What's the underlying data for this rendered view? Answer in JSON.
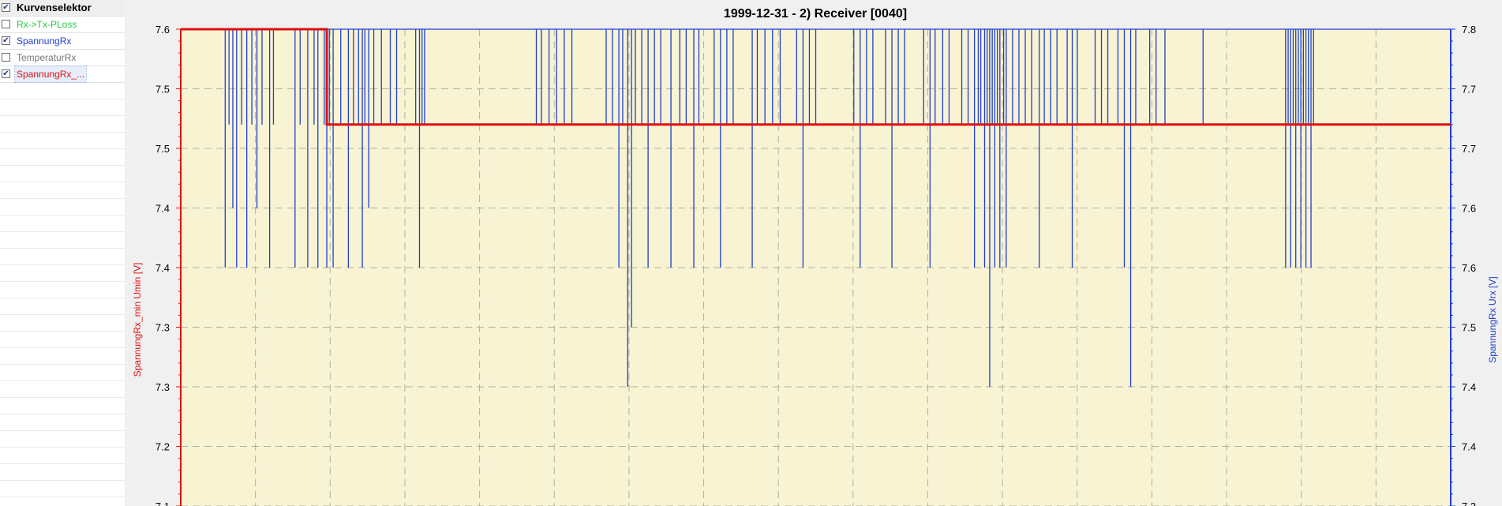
{
  "sidebar": {
    "header": {
      "label": "Kurvenselektor",
      "checked": true
    },
    "items": [
      {
        "label": "Rx->Tx-PLoss",
        "checked": false,
        "color": "#22cc44"
      },
      {
        "label": "SpannungRx",
        "checked": true,
        "color": "#1f3fcf"
      },
      {
        "label": "TemperaturRx",
        "checked": false,
        "color": "#777777"
      },
      {
        "label": "SpannungRx_...",
        "checked": true,
        "color": "#dd1111",
        "selected": true
      }
    ]
  },
  "chart_data": {
    "type": "line",
    "title": "1999-12-31 - 2) Receiver [0040]",
    "plot_background": "#f7f3d3",
    "grid": true,
    "left_axis": {
      "label": "SpannungRx_min  Umin  [V]",
      "color": "#dd1111",
      "ticks": [
        "7.6",
        "7.5",
        "7.5",
        "7.4",
        "7.4",
        "7.3",
        "7.3",
        "7.2",
        "7.1"
      ],
      "range": [
        7.1,
        7.6
      ]
    },
    "right_axis": {
      "label": "SpannungRx  Urx  [V]",
      "color": "#1f3fcf",
      "ticks": [
        "7.8",
        "7.7",
        "7.7",
        "7.6",
        "7.6",
        "7.5",
        "7.4",
        "7.4",
        "7.3"
      ],
      "range": [
        7.3,
        7.8
      ]
    },
    "series": [
      {
        "name": "SpannungRx_...",
        "axis": "left",
        "color": "#dd1111",
        "type": "step",
        "x": [
          0,
          11.5,
          11.5,
          100
        ],
        "y": [
          7.6,
          7.6,
          7.52,
          7.52
        ]
      },
      {
        "name": "SpannungRx",
        "axis": "right",
        "color": "#1f3fcf",
        "type": "drops",
        "baseline": 7.8,
        "drops": [
          [
            3.5,
            7.6
          ],
          [
            3.8,
            7.72
          ],
          [
            4.1,
            7.65
          ],
          [
            4.4,
            7.6
          ],
          [
            4.8,
            7.72
          ],
          [
            5.2,
            7.6
          ],
          [
            5.6,
            7.72
          ],
          [
            6.0,
            7.65
          ],
          [
            6.4,
            7.72
          ],
          [
            7.0,
            7.6
          ],
          [
            7.3,
            7.72
          ],
          [
            9.0,
            7.6
          ],
          [
            9.4,
            7.72
          ],
          [
            10.0,
            7.6
          ],
          [
            10.5,
            7.72
          ],
          [
            10.8,
            7.6
          ],
          [
            11.3,
            7.72
          ],
          [
            11.5,
            7.6
          ],
          [
            11.7,
            7.72
          ],
          [
            12.0,
            7.6
          ],
          [
            12.6,
            7.72
          ],
          [
            13.2,
            7.6
          ],
          [
            13.6,
            7.72
          ],
          [
            14.0,
            7.72
          ],
          [
            14.3,
            7.6
          ],
          [
            14.5,
            7.72
          ],
          [
            14.8,
            7.65
          ],
          [
            15.2,
            7.72
          ],
          [
            15.8,
            7.72
          ],
          [
            16.5,
            7.72
          ],
          [
            17.0,
            7.72
          ],
          [
            18.5,
            7.72
          ],
          [
            18.8,
            7.6
          ],
          [
            19.0,
            7.72
          ],
          [
            19.2,
            7.72
          ],
          [
            28.0,
            7.72
          ],
          [
            28.4,
            7.72
          ],
          [
            29.0,
            7.72
          ],
          [
            29.6,
            7.72
          ],
          [
            30.2,
            7.72
          ],
          [
            30.8,
            7.72
          ],
          [
            33.5,
            7.72
          ],
          [
            34.0,
            7.72
          ],
          [
            34.5,
            7.6
          ],
          [
            34.8,
            7.72
          ],
          [
            35.2,
            7.5
          ],
          [
            35.5,
            7.55
          ],
          [
            35.8,
            7.72
          ],
          [
            36.3,
            7.72
          ],
          [
            36.8,
            7.6
          ],
          [
            37.3,
            7.72
          ],
          [
            37.8,
            7.72
          ],
          [
            38.6,
            7.6
          ],
          [
            39.3,
            7.72
          ],
          [
            39.8,
            7.72
          ],
          [
            40.4,
            7.6
          ],
          [
            40.8,
            7.72
          ],
          [
            42.0,
            7.72
          ],
          [
            42.5,
            7.6
          ],
          [
            43.0,
            7.72
          ],
          [
            43.5,
            7.72
          ],
          [
            45.0,
            7.6
          ],
          [
            45.4,
            7.72
          ],
          [
            46.0,
            7.72
          ],
          [
            46.6,
            7.72
          ],
          [
            47.2,
            7.72
          ],
          [
            48.5,
            7.72
          ],
          [
            49.0,
            7.6
          ],
          [
            49.5,
            7.72
          ],
          [
            50.0,
            7.72
          ],
          [
            53.0,
            7.72
          ],
          [
            53.5,
            7.6
          ],
          [
            54.0,
            7.72
          ],
          [
            54.5,
            7.72
          ],
          [
            55.5,
            7.72
          ],
          [
            56.0,
            7.6
          ],
          [
            56.5,
            7.72
          ],
          [
            57.0,
            7.72
          ],
          [
            58.5,
            7.72
          ],
          [
            59.0,
            7.6
          ],
          [
            59.4,
            7.72
          ],
          [
            60.0,
            7.72
          ],
          [
            60.5,
            7.72
          ],
          [
            61.5,
            7.72
          ],
          [
            62.0,
            7.72
          ],
          [
            62.5,
            7.6
          ],
          [
            62.8,
            7.72
          ],
          [
            63.0,
            7.72
          ],
          [
            63.3,
            7.6
          ],
          [
            63.5,
            7.72
          ],
          [
            63.7,
            7.5
          ],
          [
            63.9,
            7.72
          ],
          [
            64.1,
            7.6
          ],
          [
            64.3,
            7.72
          ],
          [
            64.5,
            7.6
          ],
          [
            64.8,
            7.72
          ],
          [
            65.0,
            7.6
          ],
          [
            65.5,
            7.72
          ],
          [
            66.0,
            7.72
          ],
          [
            66.5,
            7.72
          ],
          [
            67.0,
            7.72
          ],
          [
            67.6,
            7.6
          ],
          [
            68.0,
            7.72
          ],
          [
            68.5,
            7.72
          ],
          [
            69.0,
            7.72
          ],
          [
            69.8,
            7.72
          ],
          [
            70.2,
            7.6
          ],
          [
            70.6,
            7.72
          ],
          [
            72.0,
            7.72
          ],
          [
            72.5,
            7.72
          ],
          [
            73.0,
            7.72
          ],
          [
            73.8,
            7.72
          ],
          [
            74.3,
            7.6
          ],
          [
            74.8,
            7.5
          ],
          [
            75.2,
            7.72
          ],
          [
            76.3,
            7.72
          ],
          [
            76.8,
            7.72
          ],
          [
            77.5,
            7.72
          ],
          [
            80.5,
            7.72
          ],
          [
            87.0,
            7.6
          ],
          [
            87.2,
            7.72
          ],
          [
            87.4,
            7.6
          ],
          [
            87.6,
            7.72
          ],
          [
            87.8,
            7.6
          ],
          [
            88.0,
            7.72
          ],
          [
            88.2,
            7.6
          ],
          [
            88.4,
            7.72
          ],
          [
            88.6,
            7.6
          ],
          [
            88.8,
            7.72
          ],
          [
            89.0,
            7.6
          ],
          [
            89.2,
            7.72
          ]
        ]
      }
    ]
  }
}
